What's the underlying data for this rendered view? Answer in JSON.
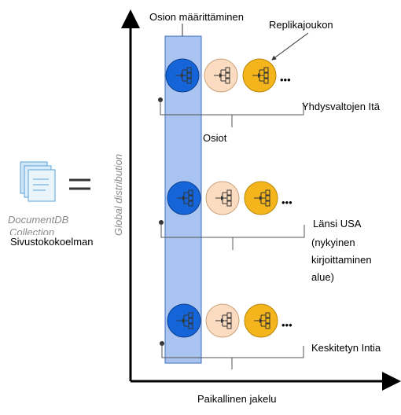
{
  "header": {
    "partition_label": "Osion määrittäminen",
    "replica_label": "Replikajoukon",
    "partitions_label": "Osiot"
  },
  "axes": {
    "y": "Global distribution",
    "x": "Paikallinen jakelu"
  },
  "collection": {
    "name": "DocumentDB",
    "subname": "Collection",
    "overlay": "Sivustokokoelman"
  },
  "regions": [
    {
      "lines": [
        "Yhdysvaltojen Itä"
      ]
    },
    {
      "lines": [
        "Länsi USA",
        "(nykyinen",
        "kirjoittaminen",
        "alue)"
      ]
    },
    {
      "lines": [
        "Keskitetyn Intia"
      ]
    }
  ]
}
